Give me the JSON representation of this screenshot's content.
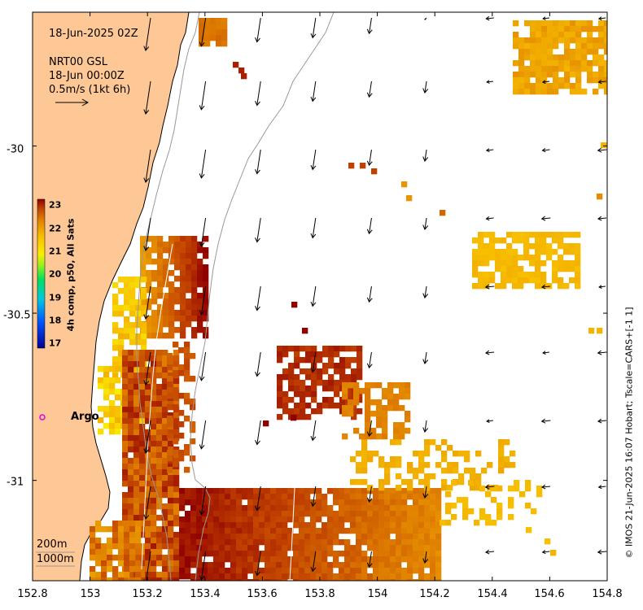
{
  "annotations": {
    "date": "18-Jun-2025 02Z",
    "product": "NRT00 GSL",
    "product_time": "18-Jun 00:00Z",
    "scale_vector": "0.5m/s (1kt 6h)",
    "argo_label": "Argo",
    "contour_200": "200m",
    "contour_1000": "1000m"
  },
  "colorbar": {
    "title": "4h comp, p50, All Sats",
    "ticks": [
      "23",
      "22",
      "21",
      "20",
      "19",
      "18",
      "17"
    ],
    "min": 17,
    "max": 23
  },
  "credit": "© IMOS 21-Jun-2025 16:07 Hobart; Tscale=CARS+[-1 1]",
  "axes": {
    "x_ticks": [
      "152.8",
      "153",
      "153.2",
      "153.4",
      "153.6",
      "153.8",
      "154",
      "154.2",
      "154.4",
      "154.6",
      "154.8"
    ],
    "y_ticks": [
      "-30",
      "-30.5",
      "-31"
    ],
    "x_range": [
      152.8,
      154.8
    ],
    "y_range": [
      -31.3,
      -29.6
    ]
  },
  "colors": {
    "land": "#fdc896",
    "sst_ramp": [
      "#00008f",
      "#0044ff",
      "#00c0ff",
      "#00e08a",
      "#80ff40",
      "#f8f000",
      "#f8c000",
      "#e88000",
      "#c84800",
      "#8f0000"
    ]
  }
}
